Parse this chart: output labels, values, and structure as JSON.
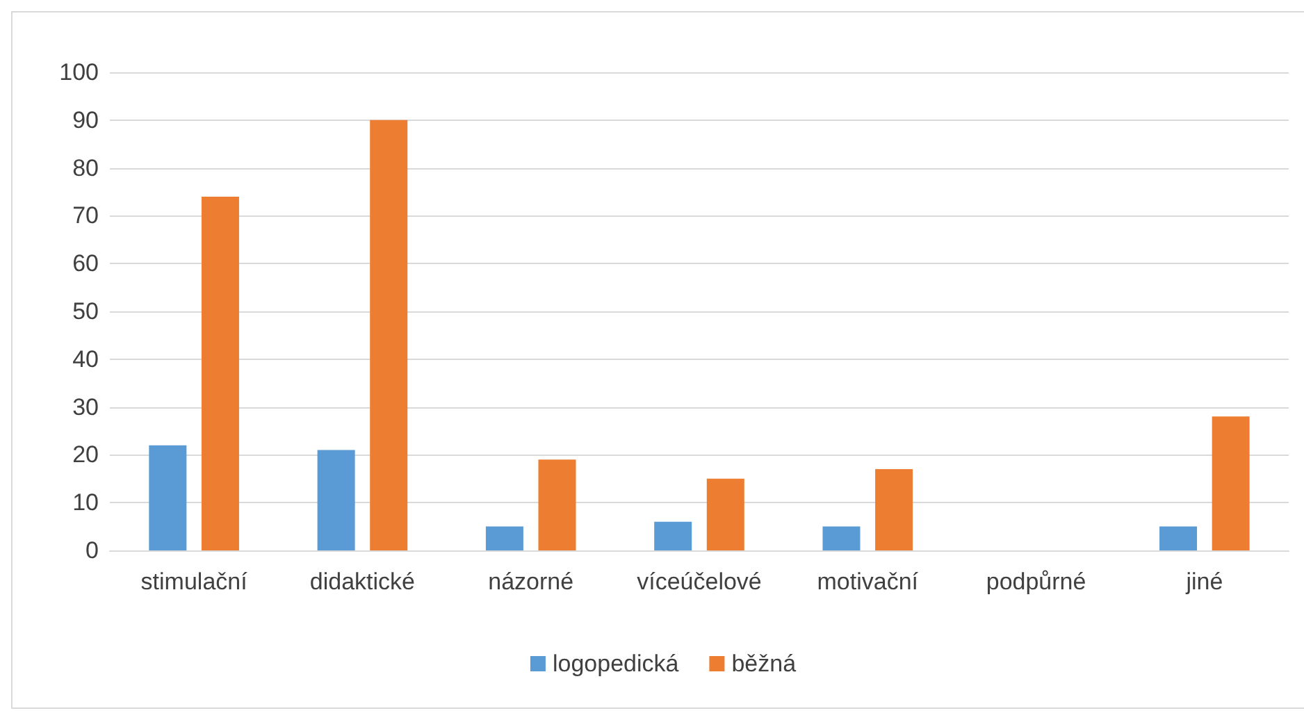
{
  "chart_data": {
    "type": "bar",
    "categories": [
      "stimulační",
      "didaktické",
      "názorné",
      "víceúčelové",
      "motivační",
      "podpůrné",
      "jiné"
    ],
    "series": [
      {
        "name": "logopedická",
        "color": "#5b9bd5",
        "values": [
          22,
          21,
          5,
          6,
          5,
          0,
          5
        ]
      },
      {
        "name": "běžná",
        "color": "#ed7d31",
        "values": [
          74,
          90,
          19,
          15,
          17,
          0,
          28
        ]
      }
    ],
    "ylim": [
      0,
      100
    ],
    "yticks": [
      0,
      10,
      20,
      30,
      40,
      50,
      60,
      70,
      80,
      90,
      100
    ],
    "grid": "y",
    "legend": "bottom"
  }
}
